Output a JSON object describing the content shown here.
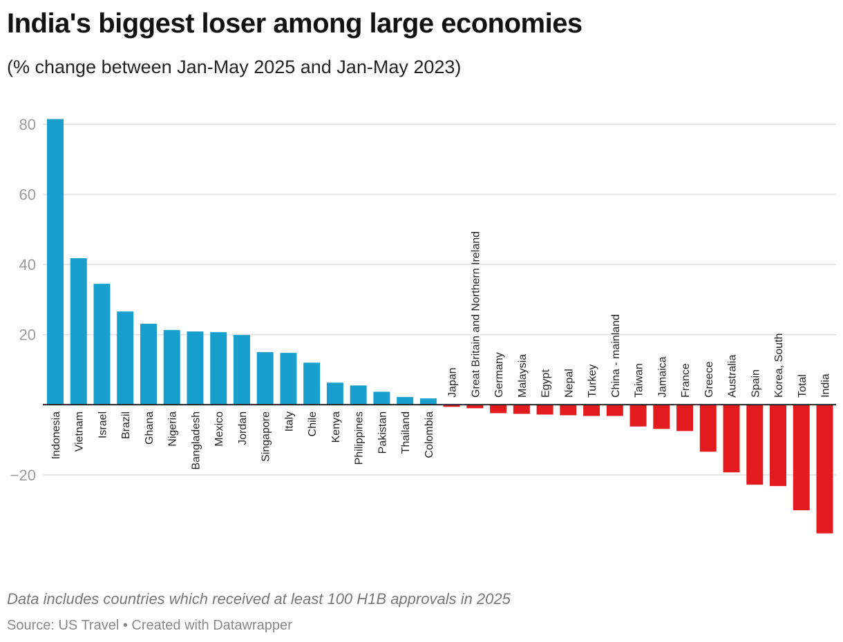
{
  "title": "India's biggest loser among large economies",
  "subtitle": "(% change between Jan-May 2025 and Jan-May 2023)",
  "footnote": "Data includes countries which received at least 100 H1B approvals in 2025",
  "source": "Source: US Travel • Created with Datawrapper",
  "colors": {
    "positive": "#199fcd",
    "negative": "#e31b1f",
    "grid": "#e5e5e5",
    "axis": "#222222",
    "tick_label": "#9a9a9a"
  },
  "chart_data": {
    "type": "bar",
    "title": "India's biggest loser among large economies",
    "subtitle": "(% change between Jan-May 2025 and Jan-May 2023)",
    "xlabel": "",
    "ylabel": "",
    "ylim": [
      -40,
      85
    ],
    "yticks": [
      -20,
      20,
      40,
      60,
      80
    ],
    "grid": true,
    "categories": [
      "Indonesia",
      "Vietnam",
      "Israel",
      "Brazil",
      "Ghana",
      "Nigeria",
      "Bangladesh",
      "Mexico",
      "Jordan",
      "Singapore",
      "Italy",
      "Chile",
      "Kenya",
      "Philippines",
      "Pakistan",
      "Thailand",
      "Colombia",
      "Japan",
      "Great Britain and Northern Ireland",
      "Germany",
      "Malaysia",
      "Egypt",
      "Nepal",
      "Turkey",
      "China - mainland",
      "Taiwan",
      "Jamaica",
      "France",
      "Greece",
      "Australia",
      "Spain",
      "Korea, South",
      "Total",
      "India"
    ],
    "values": [
      81.5,
      41.8,
      34.5,
      26.6,
      23.1,
      21.3,
      20.9,
      20.7,
      19.9,
      15.0,
      14.8,
      12.0,
      6.3,
      5.5,
      3.7,
      2.2,
      1.8,
      -0.6,
      -1.0,
      -2.4,
      -2.6,
      -2.8,
      -3.0,
      -3.2,
      -3.2,
      -6.2,
      -6.9,
      -7.5,
      -13.4,
      -19.3,
      -22.8,
      -23.2,
      -30.1,
      -36.7
    ]
  }
}
